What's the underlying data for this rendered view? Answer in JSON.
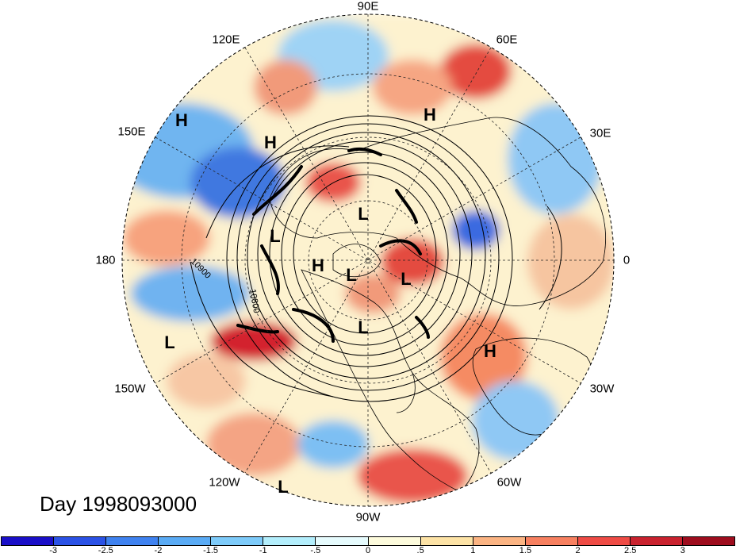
{
  "title": "Day 1998093000",
  "longitude_labels": [
    "90E",
    "60E",
    "30E",
    "0",
    "30W",
    "60W",
    "90W",
    "120W",
    "150W",
    "180",
    "150E",
    "120E"
  ],
  "contour_labels": [
    "10800",
    "10900"
  ],
  "pressure_centers": [
    {
      "letter": "H"
    },
    {
      "letter": "H"
    },
    {
      "letter": "H"
    },
    {
      "letter": "H"
    },
    {
      "letter": "H"
    },
    {
      "letter": "L"
    },
    {
      "letter": "L"
    },
    {
      "letter": "L"
    },
    {
      "letter": "L"
    },
    {
      "letter": "L"
    },
    {
      "letter": "L"
    },
    {
      "letter": "L"
    }
  ],
  "colorbar": {
    "tick_labels": [
      "-3",
      "-2.5",
      "-2",
      "-1.5",
      "-1",
      "-.5",
      "0",
      ".5",
      "1",
      "1.5",
      "2",
      "2.5",
      "3"
    ],
    "colors": [
      "#1a0fc8",
      "#2b52e6",
      "#3f82f0",
      "#5aabf5",
      "#7ecbfa",
      "#b3eefc",
      "#e6fbfd",
      "#fdfbdc",
      "#fde3a6",
      "#fbb483",
      "#f78060",
      "#ee4b45",
      "#c9222e",
      "#9e0d1e"
    ]
  }
}
